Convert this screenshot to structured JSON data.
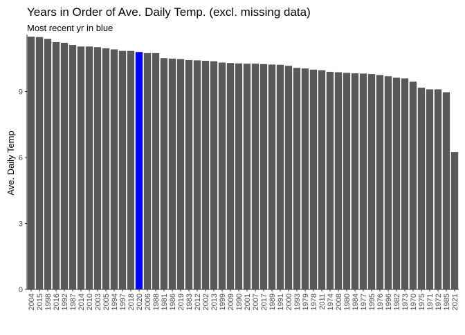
{
  "chart_data": {
    "type": "bar",
    "title": "Years in Order of Ave. Daily Temp. (excl. missing data)",
    "subtitle": "Most recent yr in blue",
    "xlabel": "",
    "ylabel": "Ave. Daily Temp",
    "ylim": [
      0,
      11.5
    ],
    "yticks": [
      "0",
      "3",
      "6",
      "9"
    ],
    "grid": false,
    "colors": {
      "bar": "#595959",
      "highlight": "#0000ff",
      "axis": "#333333"
    },
    "highlight_category": "2020",
    "categories": [
      "2004",
      "2015",
      "1998",
      "2016",
      "1992",
      "1987",
      "2014",
      "2010",
      "2003",
      "2005",
      "1994",
      "1997",
      "2018",
      "2020",
      "2006",
      "1988",
      "1981",
      "1986",
      "2019",
      "1983",
      "2012",
      "2002",
      "2013",
      "1999",
      "2009",
      "1990",
      "2001",
      "2007",
      "2017",
      "1989",
      "1991",
      "2000",
      "1993",
      "1979",
      "1978",
      "2011",
      "1974",
      "2008",
      "1980",
      "1984",
      "1977",
      "1995",
      "1976",
      "1996",
      "1982",
      "1973",
      "1970",
      "1975",
      "1971",
      "1972",
      "1985",
      "2021"
    ],
    "values": [
      11.5,
      11.48,
      11.4,
      11.25,
      11.22,
      11.12,
      11.05,
      11.05,
      11.02,
      10.97,
      10.92,
      10.85,
      10.85,
      10.8,
      10.75,
      10.75,
      10.52,
      10.5,
      10.48,
      10.43,
      10.42,
      10.4,
      10.38,
      10.32,
      10.3,
      10.28,
      10.27,
      10.27,
      10.25,
      10.23,
      10.22,
      10.17,
      10.08,
      10.05,
      10.0,
      9.97,
      9.9,
      9.88,
      9.85,
      9.83,
      9.82,
      9.8,
      9.75,
      9.7,
      9.63,
      9.6,
      9.45,
      9.18,
      9.1,
      9.1,
      8.97,
      6.25
    ]
  }
}
